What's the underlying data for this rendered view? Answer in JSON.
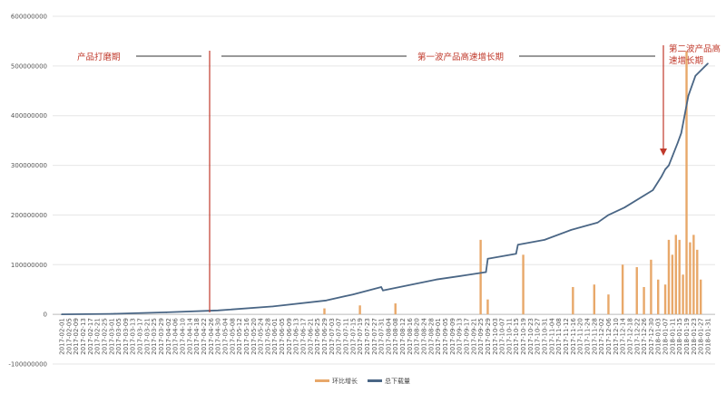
{
  "chart_data": {
    "type": "line",
    "title": "",
    "xlabel": "",
    "ylabel": "",
    "ylim": [
      -100000000,
      600000000
    ],
    "y_ticks": [
      "600000000",
      "500000000",
      "400000000",
      "300000000",
      "200000000",
      "100000000",
      "0",
      "-100000000"
    ],
    "y_tick_values": [
      600000000,
      500000000,
      400000000,
      300000000,
      200000000,
      100000000,
      0,
      -100000000
    ],
    "grid": "horizontal",
    "legend_position": "bottom",
    "x_ticks": [
      "2017-02-01",
      "2017-02-05",
      "2017-02-09",
      "2017-02-13",
      "2017-02-17",
      "2017-02-21",
      "2017-02-25",
      "2017-03-01",
      "2017-03-05",
      "2017-03-09",
      "2017-03-13",
      "2017-03-17",
      "2017-03-21",
      "2017-03-25",
      "2017-03-29",
      "2017-04-02",
      "2017-04-06",
      "2017-04-10",
      "2017-04-14",
      "2017-04-18",
      "2017-04-22",
      "2017-04-26",
      "2017-04-30",
      "2017-05-04",
      "2017-05-08",
      "2017-05-12",
      "2017-05-16",
      "2017-05-20",
      "2017-05-24",
      "2017-05-28",
      "2017-06-01",
      "2017-06-05",
      "2017-06-09",
      "2017-06-13",
      "2017-06-17",
      "2017-06-21",
      "2017-06-25",
      "2017-06-29",
      "2017-07-03",
      "2017-07-07",
      "2017-07-11",
      "2017-07-15",
      "2017-07-19",
      "2017-07-23",
      "2017-07-27",
      "2017-07-31",
      "2017-08-04",
      "2017-08-08",
      "2017-08-12",
      "2017-08-16",
      "2017-08-20",
      "2017-08-24",
      "2017-08-28",
      "2017-09-01",
      "2017-09-05",
      "2017-09-09",
      "2017-09-13",
      "2017-09-17",
      "2017-09-21",
      "2017-09-25",
      "2017-09-29",
      "2017-10-03",
      "2017-10-07",
      "2017-10-11",
      "2017-10-15",
      "2017-10-19",
      "2017-10-23",
      "2017-10-27",
      "2017-10-31",
      "2017-11-04",
      "2017-11-08",
      "2017-11-12",
      "2017-11-16",
      "2017-11-20",
      "2017-11-24",
      "2017-11-28",
      "2017-12-02",
      "2017-12-06",
      "2017-12-10",
      "2017-12-14",
      "2017-12-18",
      "2017-12-22",
      "2017-12-26",
      "2017-12-30",
      "2018-01-03",
      "2018-01-07",
      "2018-01-11",
      "2018-01-15",
      "2018-01-19",
      "2018-01-23",
      "2018-01-27",
      "2018-01-31"
    ],
    "series": [
      {
        "name": "总下载量",
        "color": "#4a6685",
        "kind": "line",
        "x": [
          "2017-02-01",
          "2017-03-01",
          "2017-04-01",
          "2017-04-30",
          "2017-05-31",
          "2017-06-30",
          "2017-07-15",
          "2017-07-31",
          "2017-08-01",
          "2017-08-31",
          "2017-09-15",
          "2017-09-28",
          "2017-09-29",
          "2017-10-15",
          "2017-10-16",
          "2017-10-31",
          "2017-11-15",
          "2017-11-30",
          "2017-12-06",
          "2017-12-15",
          "2017-12-31",
          "2018-01-05",
          "2018-01-07",
          "2018-01-09",
          "2018-01-11",
          "2018-01-14",
          "2018-01-16",
          "2018-01-20",
          "2018-01-24",
          "2018-01-31"
        ],
        "values": [
          0,
          1000000,
          4000000,
          8000000,
          16000000,
          28000000,
          40000000,
          55000000,
          48000000,
          70000000,
          78000000,
          85000000,
          112000000,
          122000000,
          140000000,
          150000000,
          170000000,
          185000000,
          200000000,
          215000000,
          250000000,
          278000000,
          292000000,
          300000000,
          318000000,
          345000000,
          365000000,
          440000000,
          480000000,
          505000000
        ]
      },
      {
        "name": "环比增长",
        "color": "#e8a86a",
        "kind": "bar",
        "x": [
          "2017-06-29",
          "2017-07-19",
          "2017-08-08",
          "2017-09-25",
          "2017-09-29",
          "2017-10-19",
          "2017-11-16",
          "2017-11-28",
          "2017-12-06",
          "2017-12-14",
          "2017-12-22",
          "2017-12-26",
          "2017-12-30",
          "2018-01-03",
          "2018-01-07",
          "2018-01-09",
          "2018-01-11",
          "2018-01-13",
          "2018-01-15",
          "2018-01-17",
          "2018-01-19",
          "2018-01-21",
          "2018-01-23",
          "2018-01-25",
          "2018-01-27"
        ],
        "values": [
          12000000,
          18000000,
          22000000,
          150000000,
          30000000,
          120000000,
          55000000,
          60000000,
          40000000,
          100000000,
          95000000,
          55000000,
          110000000,
          70000000,
          60000000,
          150000000,
          120000000,
          160000000,
          150000000,
          80000000,
          530000000,
          145000000,
          160000000,
          130000000,
          70000000
        ]
      }
    ],
    "annotations": [
      {
        "text": "产品打磨期"
      },
      {
        "text": "第一波产品高速增长期"
      },
      {
        "text": "第二波产品高速增长期"
      }
    ],
    "legend": [
      {
        "label": "环比增长",
        "color": "#e8a86a"
      },
      {
        "label": "总下载量",
        "color": "#4a6685"
      }
    ]
  }
}
